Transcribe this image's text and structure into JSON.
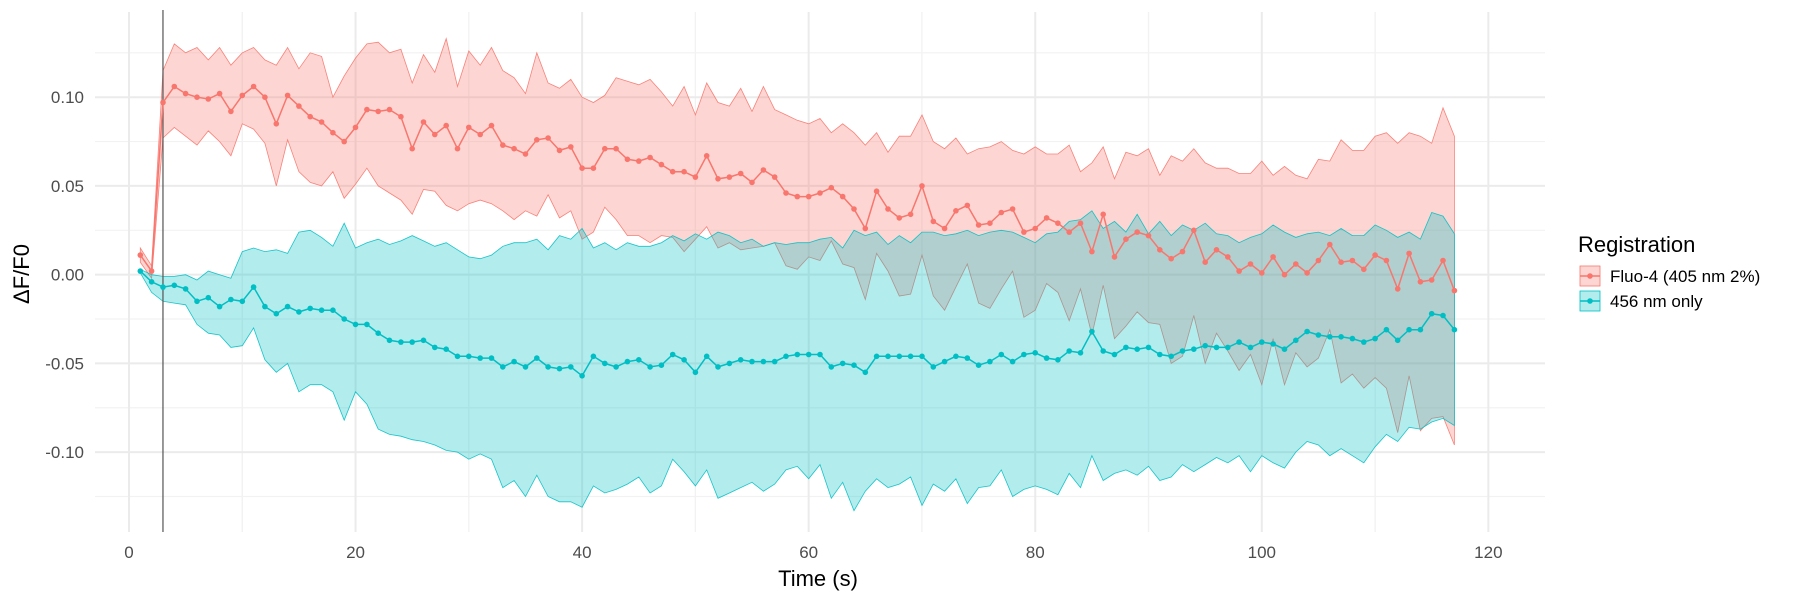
{
  "chart_data": {
    "type": "line",
    "xlabel": "Time (s)",
    "ylabel": "ΔF/F0",
    "xlim": [
      -3,
      125
    ],
    "ylim": [
      -0.145,
      0.148
    ],
    "x_ticks": [
      0,
      20,
      40,
      60,
      80,
      100,
      120
    ],
    "x_tick_labels": [
      "0",
      "20",
      "40",
      "60",
      "80",
      "100",
      "120"
    ],
    "y_ticks": [
      -0.1,
      -0.05,
      0.0,
      0.05,
      0.1
    ],
    "y_tick_labels": [
      "-0.10",
      "-0.05",
      "0.00",
      "0.05",
      "0.10"
    ],
    "vline_x": 3,
    "grid": true,
    "legend_position": "right",
    "legend_title": "Registration",
    "x": [
      1,
      2,
      3,
      4,
      5,
      6,
      7,
      8,
      9,
      10,
      11,
      12,
      13,
      14,
      15,
      16,
      17,
      18,
      19,
      20,
      21,
      22,
      23,
      24,
      25,
      26,
      27,
      28,
      29,
      30,
      31,
      32,
      33,
      34,
      35,
      36,
      37,
      38,
      39,
      40,
      41,
      42,
      43,
      44,
      45,
      46,
      47,
      48,
      49,
      50,
      51,
      52,
      53,
      54,
      55,
      56,
      57,
      58,
      59,
      60,
      61,
      62,
      63,
      64,
      65,
      66,
      67,
      68,
      69,
      70,
      71,
      72,
      73,
      74,
      75,
      76,
      77,
      78,
      79,
      80,
      81,
      82,
      83,
      84,
      85,
      86,
      87,
      88,
      89,
      90,
      91,
      92,
      93,
      94,
      95,
      96,
      97,
      98,
      99,
      100,
      101,
      102,
      103,
      104,
      105,
      106,
      107,
      108,
      109,
      110,
      111,
      112,
      113,
      114,
      115,
      116,
      117
    ],
    "series": [
      {
        "name": "Fluo-4 (405 nm 2%)",
        "color": "#F8766D",
        "fill": "#F8766D",
        "y": [
          0.011,
          0.002,
          0.097,
          0.106,
          0.102,
          0.1,
          0.099,
          0.102,
          0.092,
          0.101,
          0.106,
          0.1,
          0.085,
          0.101,
          0.095,
          0.089,
          0.086,
          0.08,
          0.075,
          0.083,
          0.093,
          0.092,
          0.093,
          0.089,
          0.071,
          0.086,
          0.079,
          0.084,
          0.071,
          0.083,
          0.079,
          0.084,
          0.073,
          0.071,
          0.068,
          0.076,
          0.077,
          0.07,
          0.072,
          0.06,
          0.06,
          0.071,
          0.071,
          0.065,
          0.064,
          0.066,
          0.062,
          0.058,
          0.058,
          0.055,
          0.067,
          0.054,
          0.055,
          0.057,
          0.052,
          0.059,
          0.055,
          0.046,
          0.044,
          0.044,
          0.046,
          0.049,
          0.044,
          0.037,
          0.026,
          0.047,
          0.037,
          0.032,
          0.034,
          0.05,
          0.03,
          0.026,
          0.036,
          0.039,
          0.028,
          0.029,
          0.035,
          0.037,
          0.024,
          0.026,
          0.032,
          0.029,
          0.024,
          0.029,
          0.013,
          0.034,
          0.01,
          0.02,
          0.024,
          0.022,
          0.014,
          0.009,
          0.013,
          0.025,
          0.007,
          0.014,
          0.01,
          0.002,
          0.006,
          0.001,
          0.01,
          0.0,
          0.006,
          0.001,
          0.008,
          0.017,
          0.007,
          0.008,
          0.003,
          0.011,
          0.008,
          -0.008,
          0.012,
          -0.004,
          -0.003,
          0.008,
          -0.009
        ],
        "upper": [
          0.015,
          0.005,
          0.115,
          0.13,
          0.125,
          0.128,
          0.121,
          0.128,
          0.118,
          0.125,
          0.128,
          0.121,
          0.118,
          0.128,
          0.116,
          0.125,
          0.123,
          0.1,
          0.112,
          0.122,
          0.13,
          0.131,
          0.125,
          0.127,
          0.108,
          0.124,
          0.114,
          0.133,
          0.106,
          0.126,
          0.118,
          0.128,
          0.115,
          0.111,
          0.102,
          0.125,
          0.108,
          0.105,
          0.11,
          0.1,
          0.097,
          0.101,
          0.111,
          0.109,
          0.107,
          0.11,
          0.103,
          0.095,
          0.106,
          0.09,
          0.108,
          0.097,
          0.095,
          0.105,
          0.092,
          0.106,
          0.093,
          0.09,
          0.087,
          0.085,
          0.088,
          0.08,
          0.085,
          0.08,
          0.073,
          0.08,
          0.069,
          0.078,
          0.078,
          0.09,
          0.075,
          0.071,
          0.077,
          0.068,
          0.071,
          0.072,
          0.075,
          0.07,
          0.068,
          0.072,
          0.068,
          0.068,
          0.073,
          0.058,
          0.063,
          0.072,
          0.054,
          0.069,
          0.067,
          0.071,
          0.056,
          0.067,
          0.064,
          0.071,
          0.063,
          0.06,
          0.06,
          0.057,
          0.057,
          0.064,
          0.056,
          0.061,
          0.056,
          0.054,
          0.065,
          0.064,
          0.076,
          0.07,
          0.07,
          0.078,
          0.08,
          0.074,
          0.08,
          0.078,
          0.074,
          0.094,
          0.078
        ],
        "lower": [
          0.007,
          -0.002,
          0.077,
          0.083,
          0.078,
          0.073,
          0.081,
          0.075,
          0.067,
          0.085,
          0.082,
          0.074,
          0.05,
          0.076,
          0.058,
          0.052,
          0.05,
          0.058,
          0.043,
          0.051,
          0.06,
          0.05,
          0.046,
          0.042,
          0.034,
          0.048,
          0.047,
          0.039,
          0.036,
          0.04,
          0.042,
          0.04,
          0.036,
          0.031,
          0.036,
          0.033,
          0.045,
          0.032,
          0.036,
          0.02,
          0.024,
          0.038,
          0.031,
          0.022,
          0.022,
          0.018,
          0.022,
          0.021,
          0.013,
          0.02,
          0.027,
          0.015,
          0.018,
          0.014,
          0.015,
          0.016,
          0.018,
          0.005,
          0.003,
          0.01,
          0.008,
          0.019,
          0.006,
          0.004,
          -0.014,
          0.012,
          0.002,
          -0.012,
          -0.011,
          0.011,
          -0.012,
          -0.02,
          -0.007,
          0.006,
          -0.016,
          -0.019,
          -0.008,
          0.002,
          -0.024,
          -0.02,
          -0.005,
          -0.01,
          -0.026,
          -0.008,
          -0.034,
          -0.006,
          -0.036,
          -0.029,
          -0.021,
          -0.027,
          -0.028,
          -0.05,
          -0.046,
          -0.023,
          -0.05,
          -0.033,
          -0.043,
          -0.054,
          -0.045,
          -0.062,
          -0.036,
          -0.062,
          -0.044,
          -0.052,
          -0.047,
          -0.031,
          -0.061,
          -0.056,
          -0.064,
          -0.058,
          -0.064,
          -0.089,
          -0.057,
          -0.088,
          -0.081,
          -0.08,
          -0.096
        ]
      },
      {
        "name": "456 nm only",
        "color": "#00BFC4",
        "fill": "#00BFC4",
        "y": [
          0.002,
          -0.004,
          -0.007,
          -0.006,
          -0.008,
          -0.015,
          -0.013,
          -0.018,
          -0.014,
          -0.015,
          -0.007,
          -0.018,
          -0.022,
          -0.018,
          -0.021,
          -0.019,
          -0.02,
          -0.02,
          -0.025,
          -0.028,
          -0.028,
          -0.033,
          -0.037,
          -0.038,
          -0.038,
          -0.037,
          -0.041,
          -0.042,
          -0.046,
          -0.046,
          -0.047,
          -0.047,
          -0.052,
          -0.049,
          -0.052,
          -0.047,
          -0.052,
          -0.053,
          -0.052,
          -0.057,
          -0.046,
          -0.05,
          -0.052,
          -0.049,
          -0.048,
          -0.052,
          -0.051,
          -0.045,
          -0.048,
          -0.055,
          -0.046,
          -0.052,
          -0.05,
          -0.048,
          -0.049,
          -0.049,
          -0.049,
          -0.046,
          -0.045,
          -0.045,
          -0.045,
          -0.052,
          -0.05,
          -0.051,
          -0.055,
          -0.046,
          -0.046,
          -0.046,
          -0.046,
          -0.046,
          -0.052,
          -0.049,
          -0.046,
          -0.047,
          -0.051,
          -0.049,
          -0.045,
          -0.049,
          -0.045,
          -0.044,
          -0.047,
          -0.048,
          -0.043,
          -0.044,
          -0.032,
          -0.043,
          -0.045,
          -0.041,
          -0.042,
          -0.041,
          -0.045,
          -0.046,
          -0.043,
          -0.042,
          -0.04,
          -0.041,
          -0.041,
          -0.038,
          -0.041,
          -0.038,
          -0.039,
          -0.042,
          -0.037,
          -0.032,
          -0.034,
          -0.035,
          -0.035,
          -0.036,
          -0.038,
          -0.036,
          -0.031,
          -0.037,
          -0.031,
          -0.031,
          -0.022,
          -0.023,
          -0.031
        ],
        "upper": [
          0.003,
          0.0,
          -0.001,
          -0.001,
          0.0,
          -0.003,
          0.002,
          0.0,
          -0.002,
          0.013,
          0.015,
          0.013,
          0.014,
          0.012,
          0.024,
          0.025,
          0.021,
          0.016,
          0.029,
          0.015,
          0.018,
          0.02,
          0.017,
          0.019,
          0.022,
          0.019,
          0.016,
          0.018,
          0.014,
          0.01,
          0.009,
          0.011,
          0.016,
          0.018,
          0.018,
          0.02,
          0.014,
          0.022,
          0.02,
          0.026,
          0.015,
          0.018,
          0.014,
          0.018,
          0.016,
          0.016,
          0.018,
          0.022,
          0.019,
          0.023,
          0.02,
          0.024,
          0.022,
          0.018,
          0.02,
          0.016,
          0.018,
          0.017,
          0.018,
          0.018,
          0.02,
          0.021,
          0.015,
          0.025,
          0.022,
          0.024,
          0.017,
          0.022,
          0.018,
          0.024,
          0.024,
          0.022,
          0.023,
          0.025,
          0.022,
          0.024,
          0.025,
          0.024,
          0.021,
          0.018,
          0.023,
          0.024,
          0.03,
          0.031,
          0.036,
          0.026,
          0.03,
          0.024,
          0.034,
          0.023,
          0.03,
          0.022,
          0.028,
          0.025,
          0.029,
          0.023,
          0.022,
          0.018,
          0.021,
          0.023,
          0.028,
          0.024,
          0.021,
          0.023,
          0.024,
          0.022,
          0.026,
          0.022,
          0.022,
          0.028,
          0.025,
          0.021,
          0.024,
          0.02,
          0.035,
          0.033,
          0.023
        ],
        "lower": [
          0.001,
          -0.01,
          -0.015,
          -0.016,
          -0.017,
          -0.028,
          -0.033,
          -0.034,
          -0.041,
          -0.04,
          -0.03,
          -0.048,
          -0.055,
          -0.05,
          -0.066,
          -0.062,
          -0.062,
          -0.066,
          -0.082,
          -0.066,
          -0.073,
          -0.087,
          -0.09,
          -0.091,
          -0.093,
          -0.094,
          -0.096,
          -0.099,
          -0.1,
          -0.104,
          -0.101,
          -0.104,
          -0.12,
          -0.116,
          -0.125,
          -0.113,
          -0.125,
          -0.128,
          -0.128,
          -0.131,
          -0.119,
          -0.123,
          -0.121,
          -0.118,
          -0.114,
          -0.123,
          -0.119,
          -0.104,
          -0.111,
          -0.119,
          -0.11,
          -0.126,
          -0.123,
          -0.12,
          -0.117,
          -0.122,
          -0.118,
          -0.11,
          -0.108,
          -0.115,
          -0.107,
          -0.126,
          -0.117,
          -0.133,
          -0.122,
          -0.115,
          -0.12,
          -0.118,
          -0.114,
          -0.13,
          -0.118,
          -0.122,
          -0.115,
          -0.129,
          -0.12,
          -0.119,
          -0.11,
          -0.125,
          -0.121,
          -0.119,
          -0.121,
          -0.124,
          -0.112,
          -0.12,
          -0.102,
          -0.116,
          -0.112,
          -0.11,
          -0.113,
          -0.108,
          -0.116,
          -0.114,
          -0.107,
          -0.111,
          -0.107,
          -0.103,
          -0.106,
          -0.102,
          -0.111,
          -0.102,
          -0.106,
          -0.109,
          -0.1,
          -0.094,
          -0.096,
          -0.102,
          -0.098,
          -0.102,
          -0.106,
          -0.097,
          -0.09,
          -0.094,
          -0.086,
          -0.087,
          -0.083,
          -0.081,
          -0.085
        ]
      }
    ]
  }
}
